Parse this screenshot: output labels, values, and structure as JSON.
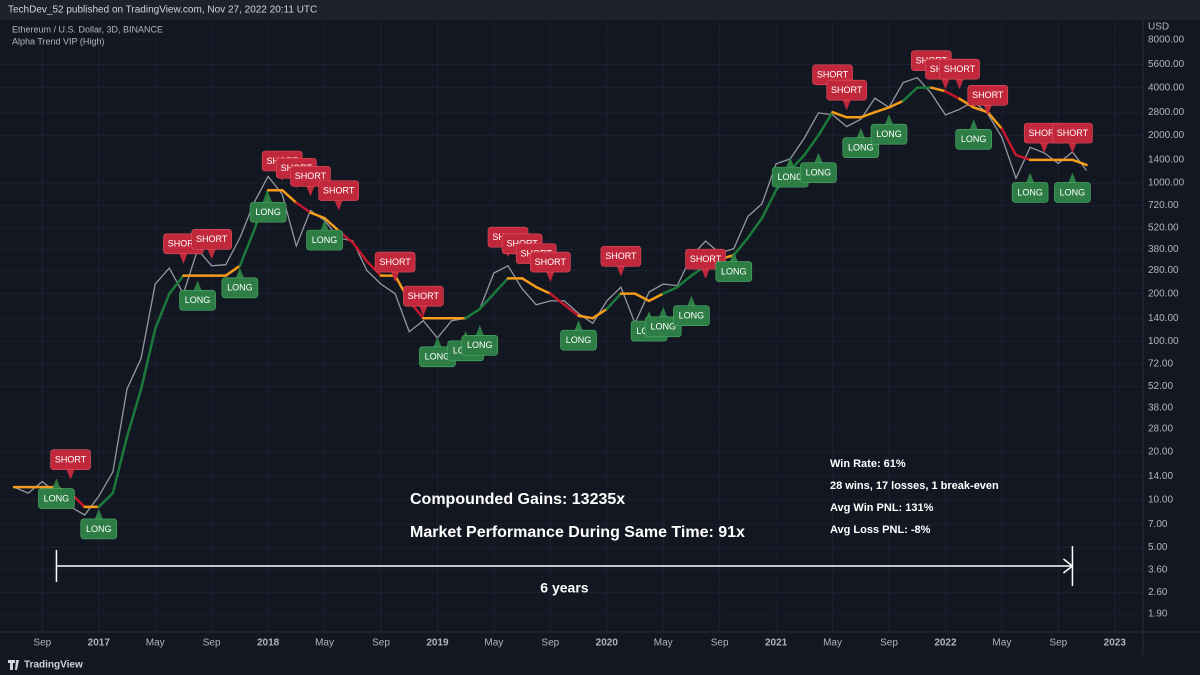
{
  "header": {
    "text": "TechDev_52 published on TradingView.com, Nov 27, 2022 20:11 UTC"
  },
  "footer": {
    "brand": "TradingView"
  },
  "chart_data": {
    "type": "line",
    "title": "Ethereum / U.S. Dollar, 3D, BINANCE",
    "subtitle": "Alpha Trend VIP (High)",
    "y_axis_label": "USD",
    "log_scale": true,
    "grid": true,
    "xlim": [
      "2016-06",
      "2023-03"
    ],
    "ylim": [
      1.46,
      10700
    ],
    "x": [
      "2016-07",
      "2016-08",
      "2016-09",
      "2016-10",
      "2016-11",
      "2016-12",
      "2017-01",
      "2017-02",
      "2017-03",
      "2017-04",
      "2017-05",
      "2017-06",
      "2017-07",
      "2017-08",
      "2017-09",
      "2017-10",
      "2017-11",
      "2017-12",
      "2018-01",
      "2018-02",
      "2018-03",
      "2018-04",
      "2018-05",
      "2018-06",
      "2018-07",
      "2018-08",
      "2018-09",
      "2018-10",
      "2018-11",
      "2018-12",
      "2019-01",
      "2019-02",
      "2019-03",
      "2019-04",
      "2019-05",
      "2019-06",
      "2019-07",
      "2019-08",
      "2019-09",
      "2019-10",
      "2019-11",
      "2019-12",
      "2020-01",
      "2020-02",
      "2020-03",
      "2020-04",
      "2020-05",
      "2020-06",
      "2020-07",
      "2020-08",
      "2020-09",
      "2020-10",
      "2020-11",
      "2020-12",
      "2021-01",
      "2021-02",
      "2021-03",
      "2021-04",
      "2021-05",
      "2021-06",
      "2021-07",
      "2021-08",
      "2021-09",
      "2021-10",
      "2021-11",
      "2021-12",
      "2022-01",
      "2022-02",
      "2022-03",
      "2022-04",
      "2022-05",
      "2022-06",
      "2022-07",
      "2022-08",
      "2022-09",
      "2022-10",
      "2022-11"
    ],
    "series": [
      {
        "color": "#9598a1",
        "values": [
          12,
          11,
          13,
          11,
          9,
          8,
          10.5,
          15,
          50,
          78,
          230,
          290,
          200,
          380,
          300,
          305,
          450,
          750,
          1100,
          850,
          400,
          670,
          580,
          450,
          430,
          280,
          230,
          200,
          115,
          135,
          105,
          135,
          140,
          160,
          270,
          300,
          215,
          170,
          180,
          180,
          150,
          130,
          180,
          220,
          130,
          205,
          230,
          225,
          345,
          430,
          360,
          385,
          615,
          740,
          1320,
          1420,
          1920,
          2770,
          2700,
          2270,
          2530,
          3430,
          3000,
          4300,
          4630,
          3680,
          2690,
          2920,
          3280,
          2730,
          1940,
          1070,
          1680,
          1550,
          1330,
          1570,
          1200
        ]
      },
      {
        "values": [
          12,
          12,
          12,
          12,
          11,
          9,
          9,
          11,
          25,
          50,
          120,
          200,
          260,
          260,
          260,
          260,
          300,
          500,
          900,
          900,
          750,
          650,
          600,
          500,
          420,
          320,
          260,
          260,
          180,
          140,
          140,
          140,
          140,
          160,
          200,
          250,
          250,
          220,
          200,
          170,
          145,
          140,
          160,
          200,
          200,
          180,
          200,
          220,
          260,
          300,
          330,
          350,
          450,
          600,
          900,
          1200,
          1500,
          2000,
          2800,
          2600,
          2600,
          2800,
          3000,
          3300,
          4000,
          4000,
          3800,
          3400,
          3000,
          2800,
          2200,
          1500,
          1400,
          1400,
          1400,
          1400,
          1300
        ],
        "colors": [
          "#f59c1a",
          "#f59c1a",
          "#f59c1a",
          "#f59c1a",
          "#c2182b",
          "#f59c1a",
          "#1b7a3a",
          "#1b7a3a",
          "#1b7a3a",
          "#1b7a3a",
          "#1b7a3a",
          "#1b7a3a",
          "#f59c1a",
          "#f59c1a",
          "#f59c1a",
          "#f59c1a",
          "#1b7a3a",
          "#1b7a3a",
          "#f59c1a",
          "#f59c1a",
          "#c2182b",
          "#f59c1a",
          "#f59c1a",
          "#c2182b",
          "#c2182b",
          "#c2182b",
          "#f59c1a",
          "#f59c1a",
          "#c2182b",
          "#f59c1a",
          "#f59c1a",
          "#f59c1a",
          "#1b7a3a",
          "#1b7a3a",
          "#1b7a3a",
          "#f59c1a",
          "#f59c1a",
          "#f59c1a",
          "#c2182b",
          "#c2182b",
          "#f59c1a",
          "#f59c1a",
          "#1b7a3a",
          "#f59c1a",
          "#f59c1a",
          "#f59c1a",
          "#1b7a3a",
          "#1b7a3a",
          "#1b7a3a",
          "#f59c1a",
          "#f59c1a",
          "#1b7a3a",
          "#1b7a3a",
          "#1b7a3a",
          "#1b7a3a",
          "#1b7a3a",
          "#1b7a3a",
          "#1b7a3a",
          "#f59c1a",
          "#f59c1a",
          "#f59c1a",
          "#f59c1a",
          "#f59c1a",
          "#1b7a3a",
          "#1b7a3a",
          "#f59c1a",
          "#c2182b",
          "#f59c1a",
          "#f59c1a",
          "#f59c1a",
          "#c2182b",
          "#c2182b",
          "#f59c1a",
          "#f59c1a",
          "#f59c1a",
          "#f59c1a",
          "#c2182b"
        ]
      }
    ],
    "signals": [
      {
        "label": "LONG",
        "x": "2016-10",
        "value": 14
      },
      {
        "label": "SHORT",
        "x": "2016-11",
        "value": 13
      },
      {
        "label": "LONG",
        "x": "2017-01",
        "value": 9
      },
      {
        "label": "SHORT",
        "x": "2017-07",
        "value": 300
      },
      {
        "label": "LONG",
        "x": "2017-08",
        "value": 250
      },
      {
        "label": "SHORT",
        "x": "2017-09",
        "value": 320
      },
      {
        "label": "LONG",
        "x": "2017-11",
        "value": 300
      },
      {
        "label": "LONG",
        "x": "2018-01",
        "value": 900
      },
      {
        "label": "SHORT",
        "x": "2018-02",
        "value": 1000
      },
      {
        "label": "SHORT",
        "x": "2018-03",
        "value": 900
      },
      {
        "label": "SHORT",
        "x": "2018-04",
        "value": 800
      },
      {
        "label": "LONG",
        "x": "2018-05",
        "value": 600
      },
      {
        "label": "SHORT",
        "x": "2018-06",
        "value": 650
      },
      {
        "label": "SHORT",
        "x": "2018-10",
        "value": 230
      },
      {
        "label": "SHORT",
        "x": "2018-12",
        "value": 140
      },
      {
        "label": "LONG",
        "x": "2019-01",
        "value": 110
      },
      {
        "label": "LONG",
        "x": "2019-03",
        "value": 120
      },
      {
        "label": "LONG",
        "x": "2019-04",
        "value": 130
      },
      {
        "label": "SHORT",
        "x": "2019-06",
        "value": 330
      },
      {
        "label": "SHORT",
        "x": "2019-07",
        "value": 300
      },
      {
        "label": "SHORT",
        "x": "2019-08",
        "value": 260
      },
      {
        "label": "SHORT",
        "x": "2019-09",
        "value": 230
      },
      {
        "label": "LONG",
        "x": "2019-11",
        "value": 140
      },
      {
        "label": "SHORT",
        "x": "2020-02",
        "value": 250
      },
      {
        "label": "LONG",
        "x": "2020-04",
        "value": 160
      },
      {
        "label": "LONG",
        "x": "2020-05",
        "value": 170
      },
      {
        "label": "LONG",
        "x": "2020-07",
        "value": 200
      },
      {
        "label": "SHORT",
        "x": "2020-08",
        "value": 240
      },
      {
        "label": "LONG",
        "x": "2020-10",
        "value": 380
      },
      {
        "label": "LONG",
        "x": "2021-02",
        "value": 1500
      },
      {
        "label": "LONG",
        "x": "2021-04",
        "value": 1600
      },
      {
        "label": "SHORT",
        "x": "2021-05",
        "value": 3500
      },
      {
        "label": "SHORT",
        "x": "2021-06",
        "value": 2800
      },
      {
        "label": "LONG",
        "x": "2021-07",
        "value": 2300
      },
      {
        "label": "LONG",
        "x": "2021-09",
        "value": 2800
      },
      {
        "label": "SHORT",
        "x": "2021-12",
        "value": 4300
      },
      {
        "label": "SHORT",
        "x": "2022-01",
        "value": 3800
      },
      {
        "label": "SHORT",
        "x": "2022-02",
        "value": 3800
      },
      {
        "label": "LONG",
        "x": "2022-03",
        "value": 2600
      },
      {
        "label": "SHORT",
        "x": "2022-04",
        "value": 2600
      },
      {
        "label": "LONG",
        "x": "2022-07",
        "value": 1200
      },
      {
        "label": "SHORT",
        "x": "2022-08",
        "value": 1500
      },
      {
        "label": "SHORT",
        "x": "2022-10",
        "value": 1500
      },
      {
        "label": "LONG",
        "x": "2022-10",
        "value": 1200
      }
    ],
    "annotations": [
      "Compounded Gains:  13235x",
      "Market Performance During Same Time:   91x"
    ],
    "stats": [
      "Win Rate:  61%",
      "28 wins, 17 losses, 1 break-even",
      "Avg Win PNL:  131%",
      "Avg Loss PNL:  -8%"
    ],
    "span": {
      "label": "6 years",
      "x": [
        "2016-10",
        "2022-10"
      ]
    },
    "xticks": [
      {
        "value": "2016-09",
        "label": "Sep"
      },
      {
        "value": "2017-01",
        "label": "2017"
      },
      {
        "value": "2017-05",
        "label": "May"
      },
      {
        "value": "2017-09",
        "label": "Sep"
      },
      {
        "value": "2018-01",
        "label": "2018"
      },
      {
        "value": "2018-05",
        "label": "May"
      },
      {
        "value": "2018-09",
        "label": "Sep"
      },
      {
        "value": "2019-01",
        "label": "2019"
      },
      {
        "value": "2019-05",
        "label": "May"
      },
      {
        "value": "2019-09",
        "label": "Sep"
      },
      {
        "value": "2020-01",
        "label": "2020"
      },
      {
        "value": "2020-05",
        "label": "May"
      },
      {
        "value": "2020-09",
        "label": "Sep"
      },
      {
        "value": "2021-01",
        "label": "2021"
      },
      {
        "value": "2021-05",
        "label": "May"
      },
      {
        "value": "2021-09",
        "label": "Sep"
      },
      {
        "value": "2022-01",
        "label": "2022"
      },
      {
        "value": "2022-05",
        "label": "May"
      },
      {
        "value": "2022-09",
        "label": "Sep"
      },
      {
        "value": "2023-01",
        "label": "2023"
      }
    ],
    "yticks": [
      {
        "value": 8000,
        "label": "8000.00"
      },
      {
        "value": 5600,
        "label": "5600.00"
      },
      {
        "value": 4000,
        "label": "4000.00"
      },
      {
        "value": 2800,
        "label": "2800.00"
      },
      {
        "value": 2000,
        "label": "2000.00"
      },
      {
        "value": 1400,
        "label": "1400.00"
      },
      {
        "value": 1000,
        "label": "1000.00"
      },
      {
        "value": 720,
        "label": "720.00"
      },
      {
        "value": 520,
        "label": "520.00"
      },
      {
        "value": 380,
        "label": "380.00"
      },
      {
        "value": 280,
        "label": "280.00"
      },
      {
        "value": 200,
        "label": "200.00"
      },
      {
        "value": 140,
        "label": "140.00"
      },
      {
        "value": 100,
        "label": "100.00"
      },
      {
        "value": 72,
        "label": "72.00"
      },
      {
        "value": 52,
        "label": "52.00"
      },
      {
        "value": 38,
        "label": "38.00"
      },
      {
        "value": 28,
        "label": "28.00"
      },
      {
        "value": 20,
        "label": "20.00"
      },
      {
        "value": 14,
        "label": "14.00"
      },
      {
        "value": 10,
        "label": "10.00"
      },
      {
        "value": 7,
        "label": "7.00"
      },
      {
        "value": 5,
        "label": "5.00"
      },
      {
        "value": 3.6,
        "label": "3.60"
      },
      {
        "value": 2.6,
        "label": "2.60"
      },
      {
        "value": 1.9,
        "label": "1.90"
      }
    ]
  }
}
